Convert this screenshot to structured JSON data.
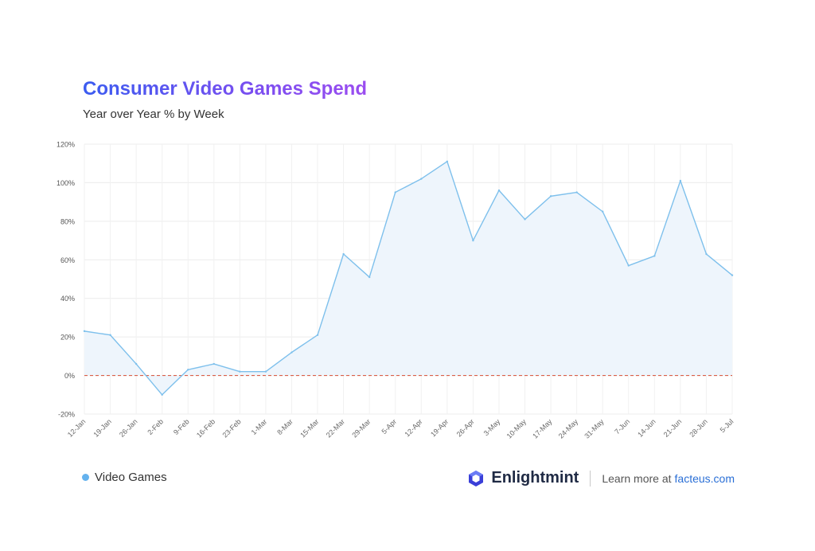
{
  "header": {
    "title": "Consumer Video Games Spend",
    "subtitle": "Year over Year % by Week"
  },
  "legend": {
    "label": "Video Games",
    "color": "#64b2ee"
  },
  "footer": {
    "brand": "Enlightmint",
    "learn_text": "Learn more at",
    "link_text": "facteus.com",
    "link_color": "#2a6fd6"
  },
  "chart_data": {
    "type": "area",
    "title": "Consumer Video Games Spend",
    "subtitle": "Year over Year % by Week",
    "x": [
      "12-Jan",
      "19-Jan",
      "26-Jan",
      "2-Feb",
      "9-Feb",
      "16-Feb",
      "23-Feb",
      "1-Mar",
      "8-Mar",
      "15-Mar",
      "22-Mar",
      "29-Mar",
      "5-Apr",
      "12-Apr",
      "19-Apr",
      "26-Apr",
      "3-May",
      "10-May",
      "17-May",
      "24-May",
      "31-May",
      "7-Jun",
      "14-Jun",
      "21-Jun",
      "28-Jun",
      "5-Jul"
    ],
    "series": [
      {
        "name": "Video Games",
        "values": [
          23,
          21,
          6,
          -10,
          3,
          6,
          2,
          2,
          12,
          21,
          63,
          51,
          95,
          102,
          111,
          70,
          96,
          81,
          93,
          95,
          85,
          57,
          62,
          101,
          63,
          52
        ]
      }
    ],
    "yticks": [
      "120%",
      "100%",
      "80%",
      "60%",
      "40%",
      "20%",
      "0%",
      "-20%"
    ],
    "ylim": [
      -20,
      120
    ],
    "reference_line": 0,
    "grid": true,
    "line_color": "#7ec0ec",
    "fill_color": "#eef5fc",
    "reference_color": "#d9604a",
    "legend_position": "bottom-left"
  }
}
